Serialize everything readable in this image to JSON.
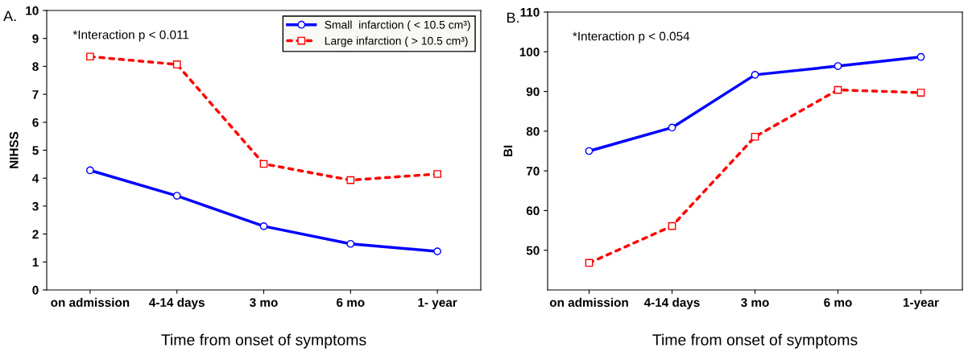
{
  "chart_data": [
    {
      "type": "line",
      "title": "A.",
      "ylabel": "NIHSS",
      "xlabel": "Time from onset of symptoms",
      "annotations": [
        "*Interaction p < 0.011"
      ],
      "categories": [
        "on admission",
        "4-14 days",
        "3 mo",
        "6 mo",
        "1- year"
      ],
      "series": [
        {
          "name": "Small  infarction ( < 10.5 cm³)",
          "color": "#0000ff",
          "values": [
            4.28,
            3.37,
            2.28,
            1.65,
            1.38
          ],
          "marker": "circle",
          "line_style": "solid"
        },
        {
          "name": "Large infarction ( > 10.5 cm³)",
          "color": "#ff0000",
          "values": [
            8.35,
            8.07,
            4.51,
            3.93,
            4.15
          ],
          "marker": "square",
          "line_style": "dotted"
        }
      ],
      "ylim": [
        0,
        10
      ],
      "yticks": [
        0,
        1,
        2,
        3,
        4,
        5,
        6,
        7,
        8,
        9,
        10
      ],
      "grid": false,
      "legend": "top right"
    },
    {
      "type": "line",
      "title": "B.",
      "ylabel": "BI",
      "xlabel": "Time from onset of symptoms",
      "annotations": [
        "*Interaction p < 0.054"
      ],
      "categories": [
        "on admission",
        "4-14 days",
        "3 mo",
        "6 mo",
        "1-year"
      ],
      "series": [
        {
          "color": "#0000ff",
          "values": [
            75.0,
            80.9,
            94.2,
            96.4,
            98.7
          ],
          "marker": "circle",
          "line_style": "solid"
        },
        {
          "color": "#ff0000",
          "values": [
            46.8,
            56.1,
            78.6,
            90.4,
            89.7
          ],
          "marker": "square",
          "line_style": "dotted"
        }
      ],
      "ylim": [
        40,
        110
      ],
      "yticks": [
        50,
        60,
        70,
        80,
        90,
        100,
        110
      ],
      "grid": false,
      "legend": false
    }
  ]
}
